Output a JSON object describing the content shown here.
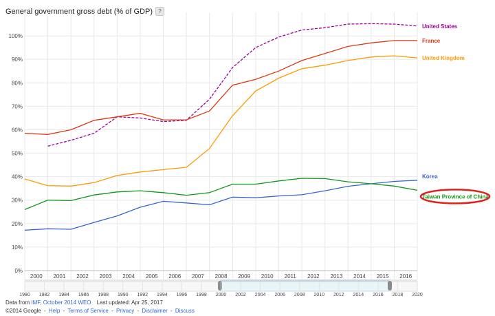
{
  "title": "General government gross debt (% of GDP)",
  "help_icon": "?",
  "chart_data": {
    "type": "line",
    "x": [
      2000,
      2001,
      2002,
      2003,
      2004,
      2005,
      2006,
      2007,
      2008,
      2009,
      2010,
      2011,
      2012,
      2013,
      2014,
      2015,
      2016,
      2017
    ],
    "x_tick_labels": [
      "2000",
      "2001",
      "2002",
      "2003",
      "2004",
      "2005",
      "2006",
      "2007",
      "2008",
      "2009",
      "2010",
      "2011",
      "2012",
      "2013",
      "2014",
      "2015",
      "2016"
    ],
    "y_ticks": [
      0,
      10,
      20,
      30,
      40,
      50,
      60,
      70,
      80,
      90,
      100
    ],
    "y_tick_labels": [
      "0%",
      "10%",
      "20%",
      "30%",
      "40%",
      "50%",
      "60%",
      "70%",
      "80%",
      "90%",
      "100%"
    ],
    "ylim": [
      0,
      110
    ],
    "grid": true,
    "series": [
      {
        "name": "United States",
        "color": "#990099",
        "dashed": true,
        "values": [
          null,
          53,
          55.5,
          58.5,
          65.5,
          65,
          63.5,
          64,
          73,
          86.5,
          95,
          99.5,
          102.5,
          103.5,
          105,
          105.2,
          105,
          104.2
        ]
      },
      {
        "name": "France",
        "color": "#dc3912",
        "dashed": false,
        "values": [
          58.5,
          58,
          60,
          64,
          65.5,
          67,
          64.2,
          64.2,
          68,
          79,
          81.5,
          85,
          89.5,
          92.5,
          95.5,
          97,
          98,
          98
        ]
      },
      {
        "name": "United Kingdom",
        "color": "#ff9900",
        "dashed": false,
        "values": [
          39,
          36.2,
          36,
          37.5,
          40.5,
          42,
          43,
          44,
          52,
          66,
          76.5,
          82,
          86,
          87.5,
          89.5,
          91,
          91.5,
          90.6
        ]
      },
      {
        "name": "Korea",
        "color": "#3366cc",
        "dashed": false,
        "values": [
          17.2,
          17.8,
          17.6,
          20.5,
          23.3,
          27,
          29.5,
          28.8,
          28,
          31.3,
          31,
          31.8,
          32.3,
          34,
          35.9,
          37,
          38,
          38.5
        ]
      },
      {
        "name": "Taiwan Province of China",
        "color": "#109618",
        "dashed": false,
        "values": [
          26,
          30,
          29.8,
          32.2,
          33.5,
          34,
          33.2,
          32.1,
          33.2,
          36.8,
          36.8,
          38.2,
          39.3,
          39.2,
          37.8,
          37,
          36,
          34.2
        ]
      }
    ]
  },
  "timeline": {
    "labels": [
      "1980",
      "1982",
      "1984",
      "1986",
      "1988",
      "1990",
      "1992",
      "1994",
      "1996",
      "1998",
      "2000",
      "2002",
      "2004",
      "2006",
      "2008",
      "2010",
      "2012",
      "2014",
      "2016",
      "2018",
      "2020"
    ]
  },
  "footer": {
    "data_from": "Data from",
    "source_link": "IMF, October 2014 WEO",
    "last_updated": "Last updated: Apr 25, 2017",
    "copyright": "©2014 Google",
    "links": [
      "Help",
      "Terms of Service",
      "Privacy",
      "Disclaimer",
      "Discuss"
    ]
  },
  "colors": {
    "grid": "#e8e8e8",
    "axis_text": "#444444",
    "annotation_ellipse": "#e0201b",
    "slider_selected": "#e9f4f8"
  }
}
